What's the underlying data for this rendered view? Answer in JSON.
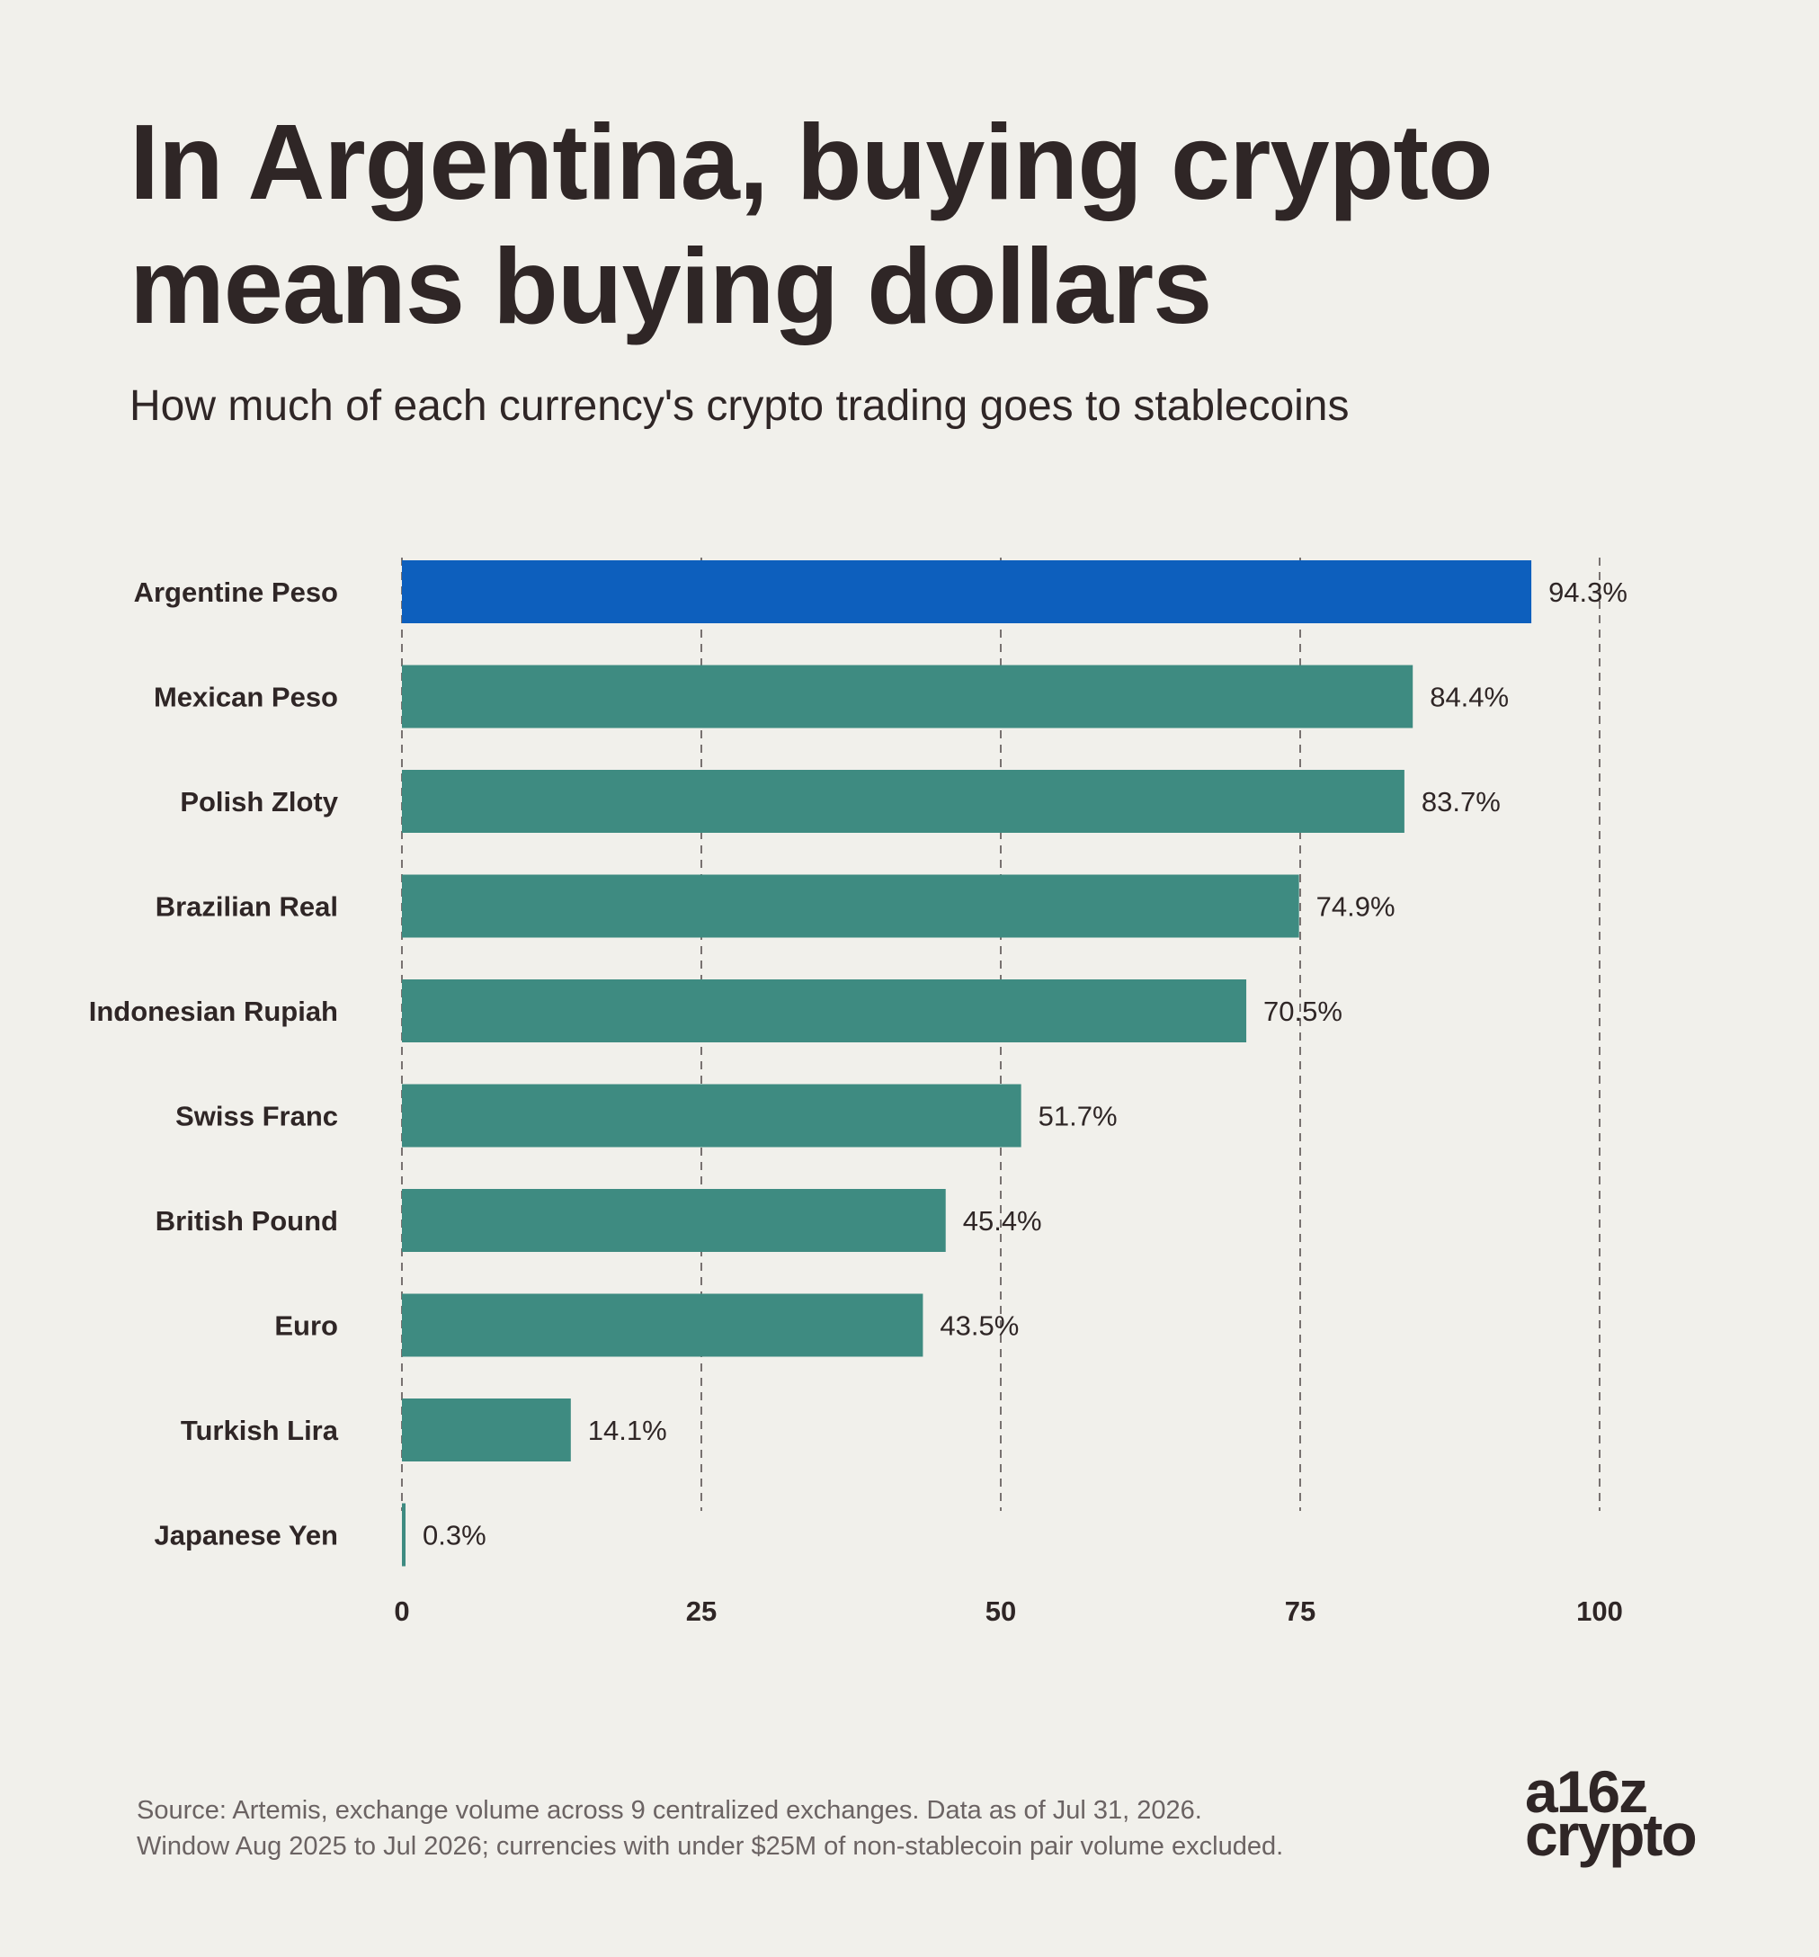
{
  "header": {
    "title": "In Argentina, buying crypto means buying dollars",
    "subtitle": "How much of each currency's crypto trading goes to stablecoins"
  },
  "footer": {
    "source_line1": "Source: Artemis, exchange volume across 9 centralized exchanges. Data as of Jul 31, 2026.",
    "source_line2": "Window Aug 2025 to Jul 2026; currencies with under $25M of non-stablecoin pair volume excluded.",
    "logo_line1": "a16z",
    "logo_line2": "crypto"
  },
  "colors": {
    "highlight": "#0d5fbd",
    "bar": "#3e8b81",
    "background": "#f1f0eb",
    "text": "#2f2626",
    "grid": "#5a5252"
  },
  "chart_data": {
    "type": "bar",
    "orientation": "horizontal",
    "categories": [
      "Argentine Peso",
      "Mexican Peso",
      "Polish Zloty",
      "Brazilian Real",
      "Indonesian Rupiah",
      "Swiss Franc",
      "British Pound",
      "Euro",
      "Turkish Lira",
      "Japanese Yen"
    ],
    "values": [
      94.3,
      84.4,
      83.7,
      74.9,
      70.5,
      51.7,
      45.4,
      43.5,
      14.1,
      0.3
    ],
    "value_labels": [
      "94.3%",
      "84.4%",
      "83.7%",
      "74.9%",
      "70.5%",
      "51.7%",
      "45.4%",
      "43.5%",
      "14.1%",
      "0.3%"
    ],
    "highlight_category": "Argentine Peso",
    "xlim": [
      0,
      100
    ],
    "xticks": [
      0,
      25,
      50,
      75,
      100
    ],
    "xtick_labels": [
      "0",
      "25",
      "50",
      "75",
      "100"
    ],
    "grid": "vertical dashed",
    "title": "In Argentina, buying crypto means buying dollars",
    "subtitle": "How much of each currency's crypto trading goes to stablecoins"
  }
}
